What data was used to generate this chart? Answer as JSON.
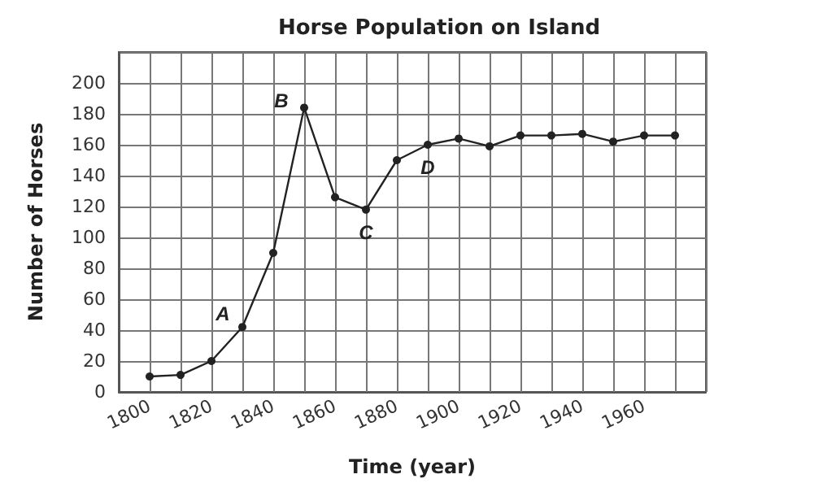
{
  "chart_data": {
    "type": "line",
    "title": "Horse Population on Island",
    "xlabel": "Time (year)",
    "ylabel": "Number of Horses",
    "x": [
      1800,
      1810,
      1820,
      1830,
      1840,
      1850,
      1860,
      1870,
      1880,
      1890,
      1900,
      1910,
      1920,
      1930,
      1940,
      1950,
      1960,
      1970
    ],
    "values": [
      10,
      11,
      20,
      42,
      90,
      184,
      126,
      118,
      150,
      160,
      164,
      159,
      166,
      166,
      167,
      162,
      166,
      166
    ],
    "color": "#222222",
    "marker": "circle",
    "grid": true,
    "xlim": [
      1790,
      1980
    ],
    "xticks": [
      {
        "value": 1790,
        "label": null
      },
      1800,
      {
        "value": 1810,
        "label": null
      },
      1820,
      {
        "value": 1830,
        "label": null
      },
      1840,
      {
        "value": 1850,
        "label": null
      },
      1860,
      {
        "value": 1870,
        "label": null
      },
      1880,
      {
        "value": 1890,
        "label": null
      },
      1900,
      {
        "value": 1910,
        "label": null
      },
      1920,
      {
        "value": 1930,
        "label": null
      },
      1940,
      {
        "value": 1950,
        "label": null
      },
      1960,
      {
        "value": 1970,
        "label": null
      },
      {
        "value": 1980,
        "label": null
      }
    ],
    "ylim": [
      0,
      220
    ],
    "yticks": [
      0,
      20,
      40,
      60,
      80,
      100,
      120,
      140,
      160,
      180,
      200,
      {
        "value": 220,
        "label": null
      }
    ],
    "annotations": [
      {
        "text": "A",
        "x": 1830,
        "y": 42
      },
      {
        "text": "B",
        "x": 1850,
        "y": 184
      },
      {
        "text": "C",
        "x": 1870,
        "y": 118
      },
      {
        "text": "D",
        "x": 1890,
        "y": 160
      }
    ]
  }
}
